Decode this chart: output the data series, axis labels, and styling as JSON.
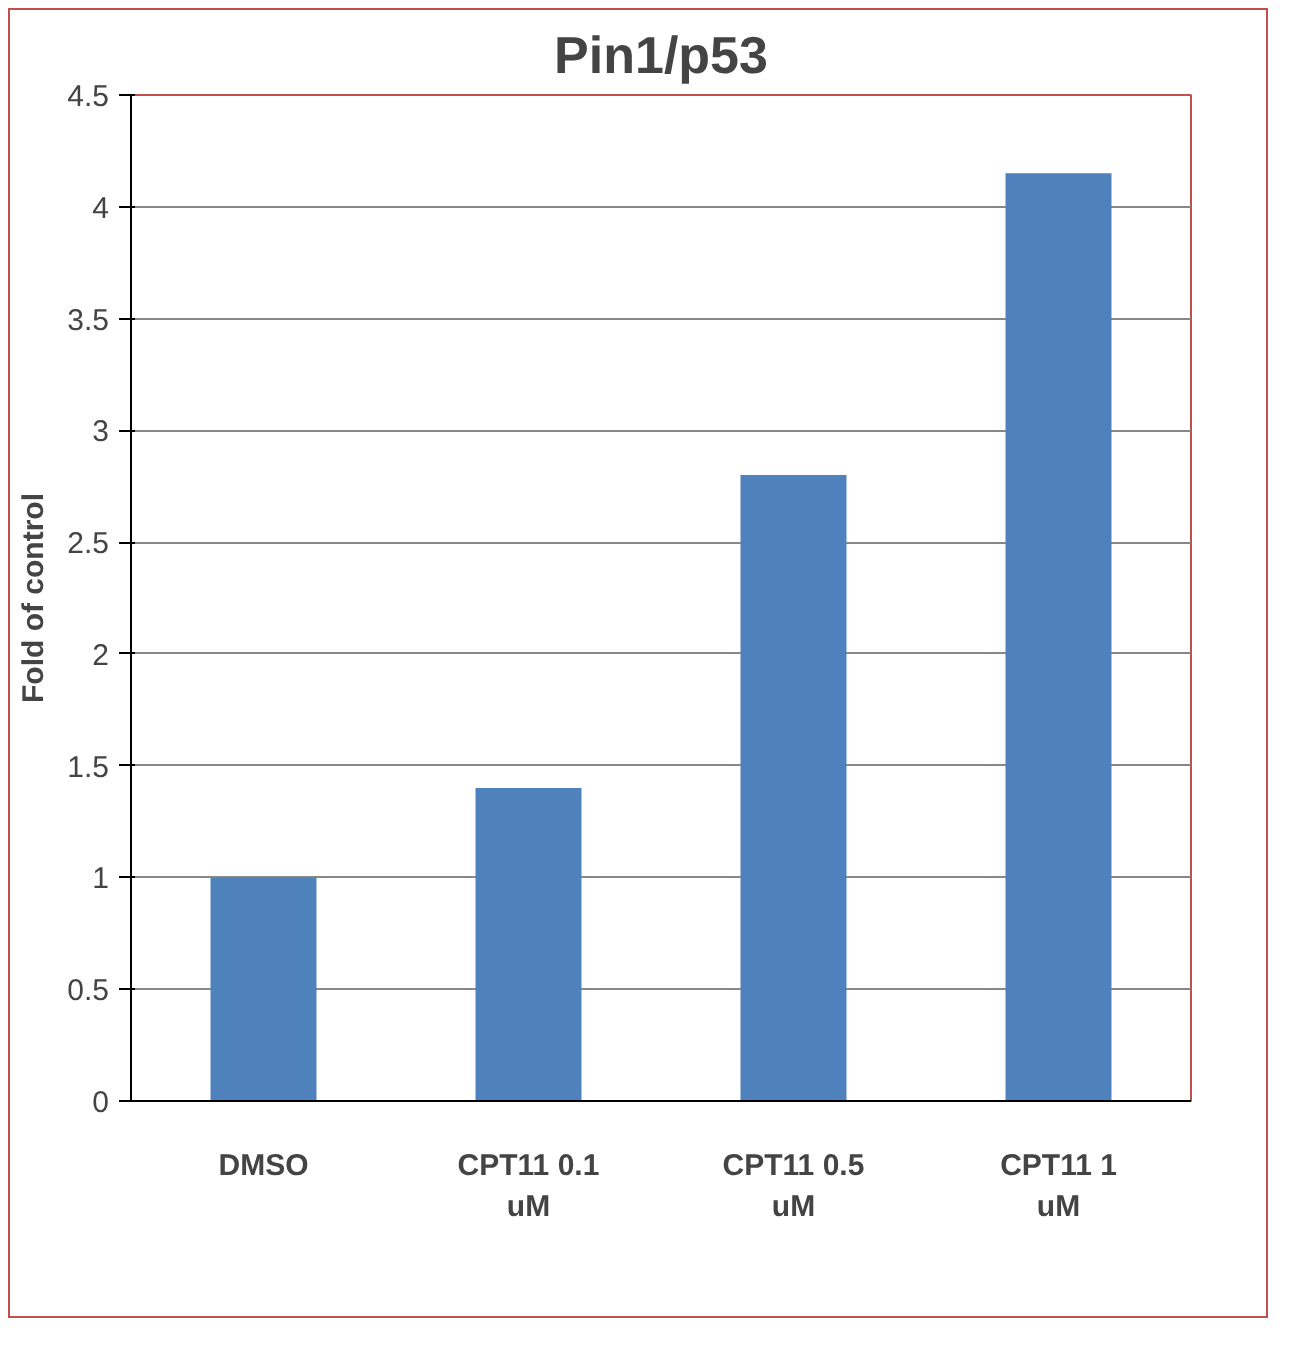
{
  "chart_data": {
    "type": "bar",
    "title": "Pin1/p53",
    "ylabel": "Fold of control",
    "categories": [
      "DMSO",
      "CPT11 0.1 uM",
      "CPT11 0.5 uM",
      "CPT11 1 uM"
    ],
    "values": [
      1.0,
      1.4,
      2.8,
      4.15
    ],
    "color": "#4f81bd",
    "ylim": [
      0,
      4.5
    ],
    "yticks": [
      0,
      0.5,
      1,
      1.5,
      2,
      2.5,
      3,
      3.5,
      4,
      4.5
    ],
    "grid": "y"
  }
}
